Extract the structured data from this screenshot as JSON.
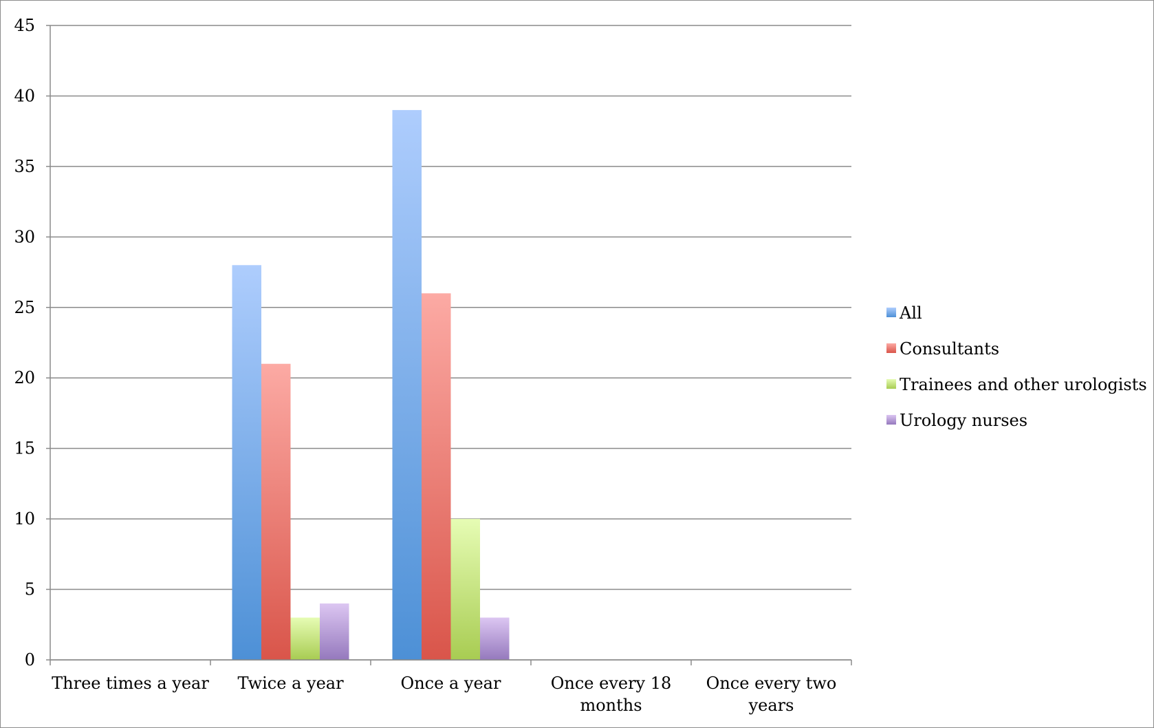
{
  "chart_data": {
    "type": "bar",
    "categories": [
      "Three times a year",
      "Twice a year",
      "Once a year",
      "Once every 18 months",
      "Once every two years"
    ],
    "category_lines": [
      [
        "Three times a year"
      ],
      [
        "Twice a year"
      ],
      [
        "Once a year"
      ],
      [
        "Once every 18",
        "months"
      ],
      [
        "Once every two",
        "years"
      ]
    ],
    "series": [
      {
        "name": "All",
        "values": [
          0,
          28,
          39,
          0,
          0
        ],
        "color_top": "#aecdfd",
        "color_bottom": "#4d90d6"
      },
      {
        "name": "Consultants",
        "values": [
          0,
          21,
          26,
          0,
          0
        ],
        "color_top": "#fcaaa4",
        "color_bottom": "#d9554a"
      },
      {
        "name": "Trainees and other urologists",
        "values": [
          0,
          3,
          10,
          0,
          0
        ],
        "color_top": "#e6fcb4",
        "color_bottom": "#a8cc52"
      },
      {
        "name": "Urology nurses",
        "values": [
          0,
          4,
          3,
          0,
          0
        ],
        "color_top": "#dcc6f2",
        "color_bottom": "#9579bd"
      }
    ],
    "ylim": [
      0,
      45
    ],
    "yticks": [
      0,
      5,
      10,
      15,
      20,
      25,
      30,
      35,
      40,
      45
    ],
    "grid": true,
    "legend_position": "right",
    "title": "",
    "xlabel": "",
    "ylabel": ""
  }
}
